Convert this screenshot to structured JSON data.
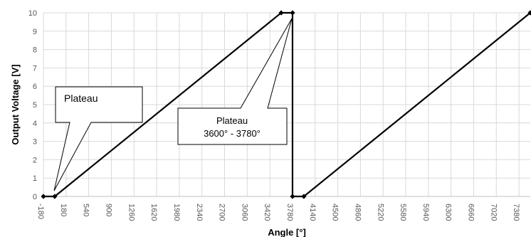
{
  "chart_data": {
    "type": "line",
    "xlabel": "Angle [°]",
    "ylabel": "Output Voltage [V]",
    "xlim": [
      -180,
      7560
    ],
    "ylim": [
      0,
      10
    ],
    "x_ticks": [
      "-180",
      "180",
      "540",
      "900",
      "1260",
      "1620",
      "1980",
      "2340",
      "2700",
      "3060",
      "3420",
      "3780",
      "4140",
      "4500",
      "4860",
      "5220",
      "5580",
      "5940",
      "6300",
      "6660",
      "7020",
      "7380"
    ],
    "y_ticks": [
      "0",
      "1",
      "2",
      "3",
      "4",
      "5",
      "6",
      "7",
      "8",
      "9",
      "10"
    ],
    "grid": true,
    "series": [
      {
        "x": [
          -180,
          0,
          3600,
          3780,
          3780,
          3960,
          7560
        ],
        "y": [
          0,
          0,
          10,
          10,
          0,
          0,
          10
        ],
        "color": "#000000"
      }
    ],
    "annotations": [
      {
        "label": "Plateau"
      },
      {
        "label": "Plateau",
        "sublabel": "3600° - 3780°"
      }
    ]
  }
}
